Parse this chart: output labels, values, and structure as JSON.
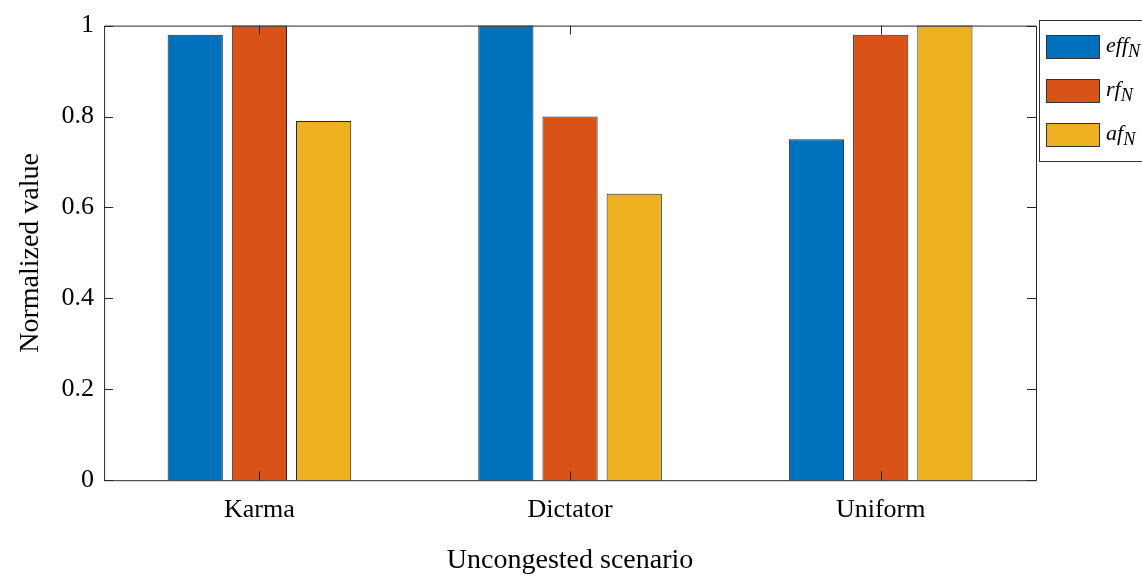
{
  "chart_data": {
    "type": "bar",
    "xlabel": "Uncongested scenario",
    "ylabel": "Normalized value",
    "categories": [
      "Karma",
      "Dictator",
      "Uniform"
    ],
    "series": [
      {
        "name": "eff$_{N}$",
        "color": "#0072bd",
        "values": [
          0.98,
          1,
          0.75
        ]
      },
      {
        "name": "rf$_{N}$",
        "color": "#d95319",
        "values": [
          1,
          0.8,
          0.98
        ]
      },
      {
        "name": "af$_{N}$",
        "color": "#edb120",
        "values": [
          0.79,
          0.63,
          1
        ]
      }
    ],
    "ylim": [
      0,
      1
    ],
    "yticks": [
      0,
      0.2,
      0.4,
      0.6,
      0.8,
      1
    ],
    "grid": false,
    "legend": "top right"
  }
}
